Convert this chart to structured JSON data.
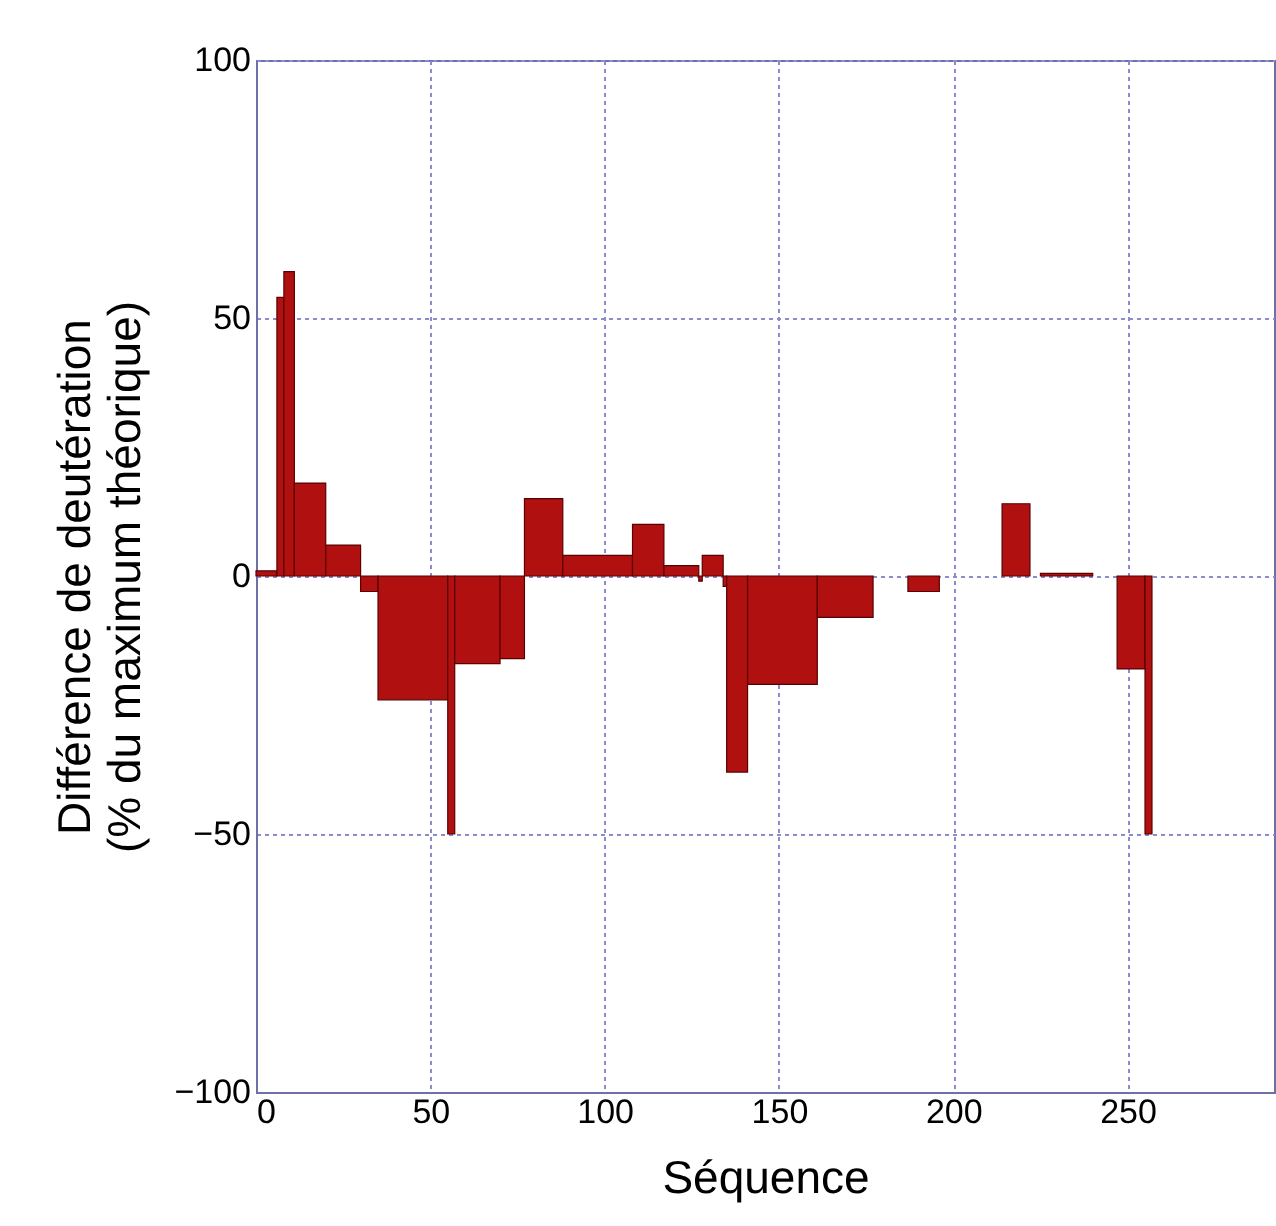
{
  "chart_data": {
    "type": "histogram",
    "xlabel": "Séquence",
    "ylabel": "Différence de deutération\n(% du maximum théorique)",
    "bins": [
      0,
      6,
      8,
      11,
      20,
      30,
      35,
      55,
      57,
      70,
      77,
      88,
      108,
      117,
      127,
      128,
      134,
      135,
      141,
      161,
      177,
      187,
      196,
      214,
      222,
      225,
      240,
      247,
      255,
      257
    ],
    "values": [
      1,
      54,
      59,
      18,
      6,
      -3,
      -24,
      -50,
      -17,
      -16,
      15,
      4,
      10,
      2,
      -1,
      4,
      -2,
      -38,
      -21,
      -8,
      null,
      -3,
      null,
      14,
      null,
      0.5,
      null,
      -18,
      -50
    ],
    "color": "#b01010",
    "xlim": [
      0,
      292
    ],
    "xticks": [
      0,
      50,
      100,
      150,
      200,
      250
    ],
    "ylim": [
      -100,
      100
    ],
    "yticks": [
      -100,
      -50,
      0,
      50,
      100
    ],
    "grid": true
  }
}
